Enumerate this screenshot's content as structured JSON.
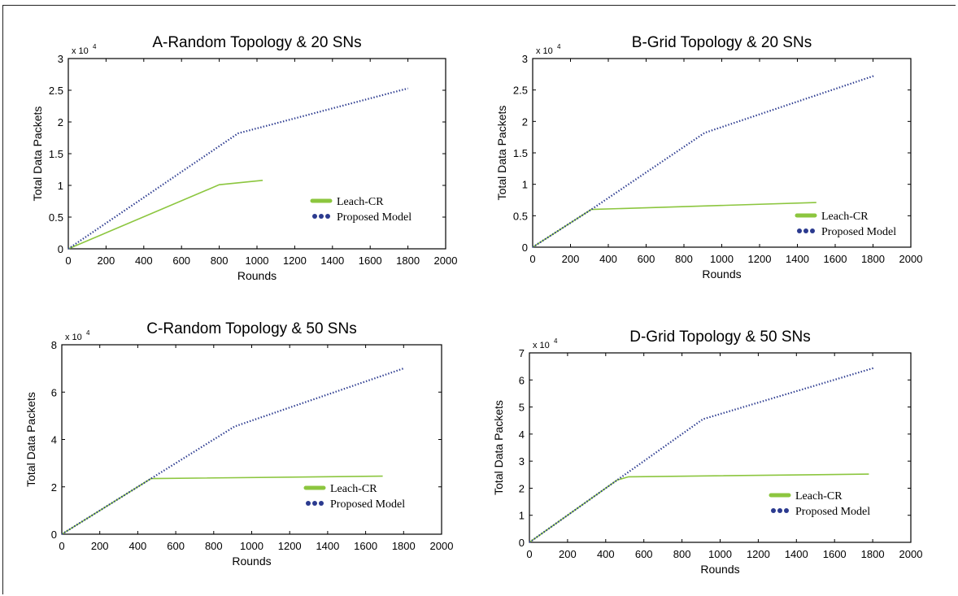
{
  "colors": {
    "leach": "#8cc63f",
    "proposed": "#2b3a8f",
    "axis": "#000000"
  },
  "chart_data": [
    {
      "type": "line",
      "title": "A-Random Topology & 20 SNs",
      "xlabel": "Rounds",
      "ylabel": "Total Data Packets",
      "xlim": [
        0,
        2000
      ],
      "ylim": [
        0,
        3
      ],
      "y_multiplier": "x 10",
      "y_multiplier_exp": "4",
      "x_ticks": [
        "0",
        "200",
        "400",
        "600",
        "800",
        "1000",
        "1200",
        "1400",
        "1600",
        "1800",
        "2000"
      ],
      "y_ticks": [
        "0",
        "0.5",
        "1",
        "1.5",
        "2",
        "2.5",
        "3"
      ],
      "legend_position": "center-right",
      "series": [
        {
          "name": "Leach-CR",
          "style": "solid",
          "x": [
            0,
            800,
            1030
          ],
          "y": [
            0,
            1.01,
            1.08
          ]
        },
        {
          "name": "Proposed Model",
          "style": "dotted",
          "x": [
            0,
            900,
            1800
          ],
          "y": [
            0,
            1.82,
            2.53
          ]
        }
      ]
    },
    {
      "type": "line",
      "title": "B-Grid Topology & 20 SNs",
      "xlabel": "Rounds",
      "ylabel": "Total Data Packets",
      "xlim": [
        0,
        2000
      ],
      "ylim": [
        0,
        3
      ],
      "y_multiplier": "x 10",
      "y_multiplier_exp": "4",
      "x_ticks": [
        "0",
        "200",
        "400",
        "600",
        "800",
        "1000",
        "1200",
        "1400",
        "1600",
        "1800",
        "2000"
      ],
      "y_ticks": [
        "0",
        "0.5",
        "1",
        "1.5",
        "2",
        "2.5",
        "3"
      ],
      "legend_position": "bottom-right",
      "series": [
        {
          "name": "Leach-CR",
          "style": "solid",
          "x": [
            0,
            310,
            1500
          ],
          "y": [
            0,
            0.6,
            0.71
          ]
        },
        {
          "name": "Proposed Model",
          "style": "dotted",
          "x": [
            0,
            310,
            910,
            1810
          ],
          "y": [
            0,
            0.6,
            1.82,
            2.73
          ]
        }
      ]
    },
    {
      "type": "line",
      "title": "C-Random Topology & 50 SNs",
      "xlabel": "Rounds",
      "ylabel": "Total Data Packets",
      "xlim": [
        0,
        2000
      ],
      "ylim": [
        0,
        8
      ],
      "y_multiplier": "x 10",
      "y_multiplier_exp": "4",
      "x_ticks": [
        "0",
        "200",
        "400",
        "600",
        "800",
        "1000",
        "1200",
        "1400",
        "1600",
        "1800",
        "2000"
      ],
      "y_ticks": [
        "0",
        "2",
        "4",
        "6",
        "8"
      ],
      "legend_position": "bottom-right",
      "series": [
        {
          "name": "Leach-CR",
          "style": "solid",
          "x": [
            0,
            470,
            1690
          ],
          "y": [
            0,
            2.35,
            2.45
          ]
        },
        {
          "name": "Proposed Model",
          "style": "dotted",
          "x": [
            0,
            470,
            910,
            1800
          ],
          "y": [
            0,
            2.35,
            4.55,
            7.0
          ]
        }
      ]
    },
    {
      "type": "line",
      "title": "D-Grid Topology & 50 SNs",
      "xlabel": "Rounds",
      "ylabel": "Total Data Packets",
      "xlim": [
        0,
        2000
      ],
      "ylim": [
        0,
        7
      ],
      "y_multiplier": "x 10",
      "y_multiplier_exp": "4",
      "x_ticks": [
        "0",
        "200",
        "400",
        "600",
        "800",
        "1000",
        "1200",
        "1400",
        "1600",
        "1800",
        "2000"
      ],
      "y_ticks": [
        "0",
        "1",
        "2",
        "3",
        "4",
        "5",
        "6",
        "7"
      ],
      "legend_position": "bottom-right",
      "series": [
        {
          "name": "Leach-CR",
          "style": "solid",
          "x": [
            0,
            460,
            520,
            1780
          ],
          "y": [
            0,
            2.3,
            2.42,
            2.52
          ]
        },
        {
          "name": "Proposed Model",
          "style": "dotted",
          "x": [
            0,
            470,
            910,
            1810
          ],
          "y": [
            0,
            2.35,
            4.55,
            6.45
          ]
        }
      ]
    }
  ]
}
